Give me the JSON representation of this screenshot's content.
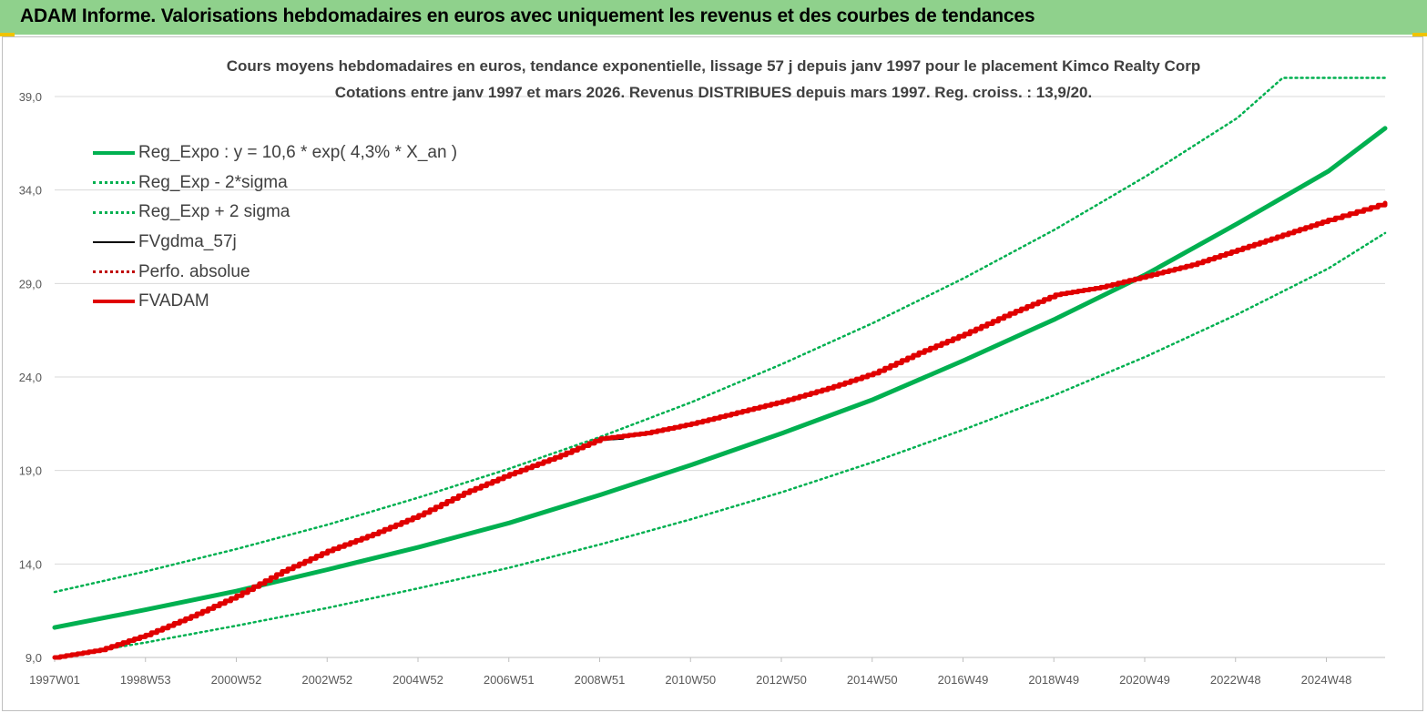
{
  "banner": {
    "title": "ADAM Informe. Valorisations hebdomadaires en euros avec uniquement les revenus et des courbes de tendances"
  },
  "colors": {
    "banner_bg": "#8fd18c",
    "accent": "#f0c400",
    "reg_expo": "#00b050",
    "fvadam": "#e00000",
    "grid": "#d9d9d9"
  },
  "chart_data": {
    "type": "line",
    "title": "Cours moyens hebdomadaires en euros, tendance exponentielle, lissage 57 j depuis janv 1997 pour le placement Kimco Realty Corp",
    "subtitle": "Cotations entre janv 1997 et mars 2026. Revenus DISTRIBUES depuis mars 1997. Reg. croiss. : 13,9/20.",
    "xlabel": "",
    "ylabel": "",
    "x_ticks": [
      "1997W01",
      "1998W53",
      "2000W52",
      "2002W52",
      "2004W52",
      "2006W51",
      "2008W51",
      "2010W50",
      "2012W50",
      "2014W50",
      "2016W49",
      "2018W49",
      "2020W49",
      "2022W48",
      "2024W48"
    ],
    "y_ticks": [
      "9,0",
      "14,0",
      "19,0",
      "24,0",
      "29,0",
      "34,0",
      "39,0"
    ],
    "ylim": [
      9,
      40
    ],
    "xlim": [
      1997.0,
      2026.25
    ],
    "grid": true,
    "legend_position": "top-left",
    "series": [
      {
        "name": "Reg_Expo : y = 10,6 * exp( 4,3% *  X_an )",
        "style": "solid-thick",
        "color": "#00b050",
        "x": [
          1997.0,
          1999.0,
          2001.0,
          2003.0,
          2005.0,
          2007.0,
          2009.0,
          2011.0,
          2013.0,
          2015.0,
          2017.0,
          2019.0,
          2021.0,
          2023.0,
          2025.0,
          2026.25
        ],
        "y": [
          10.6,
          11.55,
          12.55,
          13.7,
          14.9,
          16.2,
          17.7,
          19.3,
          21.0,
          22.8,
          24.9,
          27.1,
          29.5,
          32.2,
          35.0,
          37.3
        ]
      },
      {
        "name": "Reg_Exp - 2*sigma",
        "style": "dotted",
        "color": "#00b050",
        "x": [
          1997.0,
          1999.0,
          2001.0,
          2003.0,
          2005.0,
          2007.0,
          2009.0,
          2011.0,
          2013.0,
          2015.0,
          2017.0,
          2019.0,
          2021.0,
          2023.0,
          2025.0,
          2026.25
        ],
        "y": [
          9.0,
          9.8,
          10.7,
          11.65,
          12.7,
          13.8,
          15.05,
          16.4,
          17.85,
          19.45,
          21.2,
          23.05,
          25.1,
          27.35,
          29.8,
          31.7
        ]
      },
      {
        "name": "Reg_Exp + 2 sigma",
        "style": "dotted",
        "color": "#00b050",
        "x": [
          1997.0,
          1999.0,
          2001.0,
          2003.0,
          2005.0,
          2007.0,
          2009.0,
          2011.0,
          2013.0,
          2015.0,
          2017.0,
          2019.0,
          2021.0,
          2023.0,
          2024.0,
          2026.25
        ],
        "y": [
          12.5,
          13.6,
          14.8,
          16.1,
          17.55,
          19.1,
          20.8,
          22.65,
          24.7,
          26.9,
          29.3,
          31.9,
          34.75,
          37.85,
          40.0,
          40.0
        ]
      },
      {
        "name": "FVgdma_57j",
        "style": "solid",
        "color": "#000000",
        "x": [
          2008.9,
          2009.5
        ],
        "y": [
          20.6,
          20.7
        ]
      },
      {
        "name": "Perfo. absolue",
        "style": "dotted",
        "color": "#c00000",
        "x": [],
        "y": []
      },
      {
        "name": "FVADAM",
        "style": "solid-thick",
        "color": "#e00000",
        "x": [
          1997.0,
          1998.0,
          1999.0,
          2000.0,
          2001.0,
          2002.0,
          2003.0,
          2004.0,
          2005.0,
          2006.0,
          2007.0,
          2008.0,
          2009.0,
          2010.0,
          2011.0,
          2012.0,
          2013.0,
          2014.0,
          2015.0,
          2016.0,
          2017.0,
          2018.0,
          2019.0,
          2020.0,
          2021.0,
          2022.0,
          2023.0,
          2024.0,
          2025.0,
          2026.25
        ],
        "y": [
          9.0,
          9.4,
          10.2,
          11.2,
          12.3,
          13.6,
          14.7,
          15.6,
          16.6,
          17.8,
          18.8,
          19.7,
          20.7,
          21.0,
          21.5,
          22.1,
          22.7,
          23.4,
          24.2,
          25.3,
          26.3,
          27.4,
          28.4,
          28.8,
          29.4,
          30.0,
          30.8,
          31.6,
          32.4,
          33.3
        ]
      }
    ]
  }
}
